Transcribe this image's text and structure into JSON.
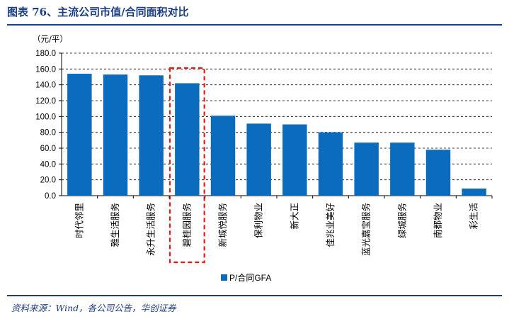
{
  "header": {
    "title": "图表 76、主流公司市值/合同面积对比"
  },
  "footer": {
    "source": "资料来源：Wind，各公司公告，华创证券"
  },
  "chart_data": {
    "type": "bar",
    "title": "主流公司市值/合同面积对比",
    "ylabel": "（元/平）",
    "xlabel": "",
    "ylim": [
      0,
      180
    ],
    "yticks": [
      "0.0",
      "20.0",
      "40.0",
      "60.0",
      "80.0",
      "100.0",
      "120.0",
      "140.0",
      "160.0",
      "180.0"
    ],
    "grid": true,
    "legend_position": "bottom",
    "bar_color": "#0b6cbd",
    "highlight_color": "#e31b1b",
    "highlight_category": "碧桂园服务",
    "categories": [
      "时代邻里",
      "雅生活服务",
      "永升生活服务",
      "碧桂园服务",
      "新城悦服务",
      "保利物业",
      "新大正",
      "佳兆业美好",
      "蓝光嘉宝服务",
      "绿城服务",
      "南都物业",
      "彩生活"
    ],
    "series": [
      {
        "name": "P/合同GFA",
        "values": [
          154,
          153,
          152,
          142,
          101,
          91,
          90,
          80,
          67,
          67,
          58,
          9
        ]
      }
    ]
  }
}
